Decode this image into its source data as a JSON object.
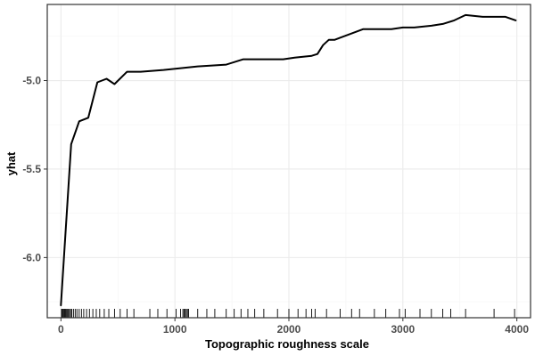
{
  "chart_data": {
    "type": "line",
    "xlabel": "Topographic roughness scale",
    "ylabel": "yhat",
    "xlim": [
      -120,
      4120
    ],
    "ylim": [
      -6.34,
      -4.57
    ],
    "x_ticks": [
      0,
      1000,
      2000,
      3000,
      4000
    ],
    "x_tick_labels": [
      "0",
      "1000",
      "2000",
      "3000",
      "4000"
    ],
    "y_ticks": [
      -6.0,
      -5.5,
      -5.0
    ],
    "y_tick_labels": [
      "-6.0",
      "-5.5",
      "-5.0"
    ],
    "grid": true,
    "legend": "none",
    "series": [
      {
        "x": [
          0,
          90,
          160,
          240,
          320,
          400,
          470,
          580,
          700,
          900,
          1050,
          1200,
          1450,
          1600,
          1800,
          1950,
          2050,
          2200,
          2250,
          2300,
          2350,
          2400,
          2650,
          2750,
          2900,
          3000,
          3100,
          3250,
          3350,
          3450,
          3550,
          3700,
          3900,
          3990
        ],
        "y": [
          -6.27,
          -5.36,
          -5.23,
          -5.21,
          -5.01,
          -4.99,
          -5.02,
          -4.95,
          -4.95,
          -4.94,
          -4.93,
          -4.92,
          -4.91,
          -4.88,
          -4.88,
          -4.88,
          -4.87,
          -4.86,
          -4.85,
          -4.8,
          -4.77,
          -4.77,
          -4.71,
          -4.71,
          -4.71,
          -4.7,
          -4.7,
          -4.69,
          -4.68,
          -4.66,
          -4.63,
          -4.64,
          -4.64,
          -4.66
        ]
      }
    ],
    "rug_x": [
      5,
      12,
      20,
      28,
      35,
      42,
      50,
      58,
      66,
      75,
      85,
      95,
      110,
      125,
      140,
      160,
      180,
      200,
      225,
      250,
      280,
      310,
      340,
      380,
      420,
      470,
      520,
      580,
      640,
      780,
      850,
      930,
      1010,
      1050,
      1070,
      1080,
      1090,
      1100,
      1110,
      1120,
      1200,
      1280,
      1350,
      1450,
      1520,
      1580,
      1640,
      1700,
      1780,
      1900,
      2000,
      2080,
      2150,
      2200,
      2230,
      2330,
      2450,
      2550,
      2620,
      2750,
      2850,
      2970,
      3020,
      3150,
      3250,
      3350,
      3420,
      3550,
      3800,
      3980
    ]
  },
  "colors": {
    "line": "#000000",
    "grid": "#ebebeb",
    "panel_border": "#333333",
    "rug": "#000000"
  }
}
